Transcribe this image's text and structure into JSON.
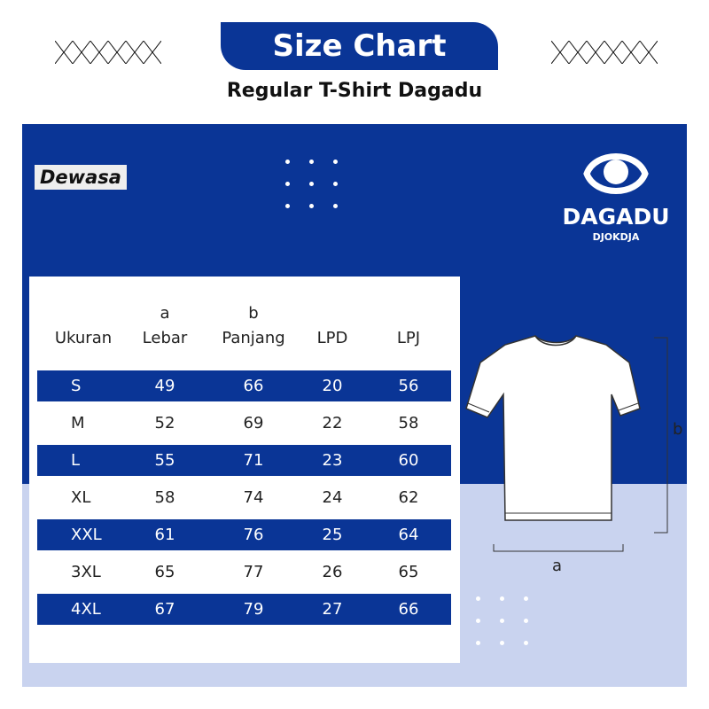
{
  "title": "Size Chart",
  "subtitle": "Regular T-Shirt Dagadu",
  "category": "Dewasa",
  "logo": {
    "brand": "DAGADU",
    "sub": "DJOKDJA"
  },
  "colors": {
    "primary": "#0a3596",
    "light": "#c9d3ef"
  },
  "table": {
    "headers": [
      {
        "top": "",
        "label": "Ukuran"
      },
      {
        "top": "a",
        "label": "Lebar"
      },
      {
        "top": "b",
        "label": "Panjang"
      },
      {
        "top": "",
        "label": "LPD"
      },
      {
        "top": "",
        "label": "LPJ"
      }
    ],
    "rows": [
      [
        "S",
        "49",
        "66",
        "20",
        "56"
      ],
      [
        "M",
        "52",
        "69",
        "22",
        "58"
      ],
      [
        "L",
        "55",
        "71",
        "23",
        "60"
      ],
      [
        "XL",
        "58",
        "74",
        "24",
        "62"
      ],
      [
        "XXL",
        "61",
        "76",
        "25",
        "64"
      ],
      [
        "3XL",
        "65",
        "77",
        "26",
        "65"
      ],
      [
        "4XL",
        "67",
        "79",
        "27",
        "66"
      ]
    ]
  },
  "measure": {
    "a": "a",
    "b": "b"
  }
}
